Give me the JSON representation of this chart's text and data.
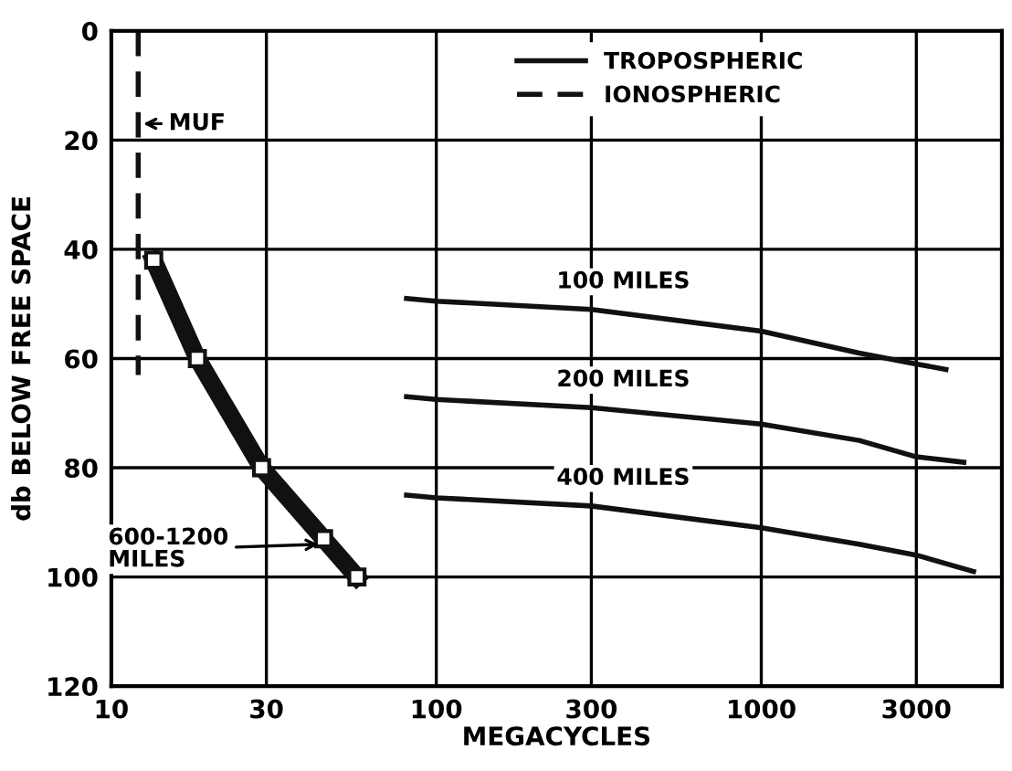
{
  "chart_data": {
    "type": "line",
    "xlabel": "MEGACYCLES",
    "ylabel": "db BELOW FREE SPACE",
    "log": "x",
    "xlim": [
      10,
      5500
    ],
    "xticks": [
      10,
      30,
      100,
      300,
      1000,
      3000
    ],
    "ylim": [
      120,
      0
    ],
    "yticks": [
      0,
      20,
      40,
      60,
      80,
      100,
      120
    ],
    "grid": true,
    "legend": "top right",
    "marker": "none",
    "series": [
      {
        "name": "TROPOSPHERIC",
        "color": "#111111",
        "line_style": "solid",
        "x": [
          81,
          100,
          300,
          1000,
          2000,
          3000,
          3700
        ],
        "values": [
          49,
          49.5,
          51,
          55,
          59,
          61,
          62
        ]
      },
      {
        "color": "#111111",
        "line_style": "solid",
        "x": [
          81,
          100,
          300,
          1000,
          2000,
          3000,
          4200
        ],
        "values": [
          67,
          67.5,
          69,
          72,
          75,
          78,
          79
        ]
      },
      {
        "color": "#111111",
        "line_style": "solid",
        "x": [
          81,
          100,
          300,
          1000,
          2000,
          3000,
          4500
        ],
        "values": [
          85,
          85.5,
          87,
          91,
          94,
          96,
          99
        ]
      },
      {
        "name": "IONOSPHERIC",
        "color": "#111111",
        "line_style": "dashed",
        "x": [
          12.1,
          12.1
        ],
        "values": [
          0,
          63
        ]
      },
      {
        "color": "#111111",
        "line_style": "solid",
        "marker": "square",
        "x": [
          13.5,
          18.4,
          29,
          45,
          57
        ],
        "values": [
          42,
          60,
          80,
          93,
          100
        ]
      }
    ],
    "annotations": [
      "100 MILES",
      "200 MILES",
      "400 MILES",
      {
        "text": "MUF",
        "x": 12.1,
        "y": 17
      },
      {
        "text": "600-1200\nMILES",
        "x": 45,
        "y": 94
      }
    ]
  }
}
